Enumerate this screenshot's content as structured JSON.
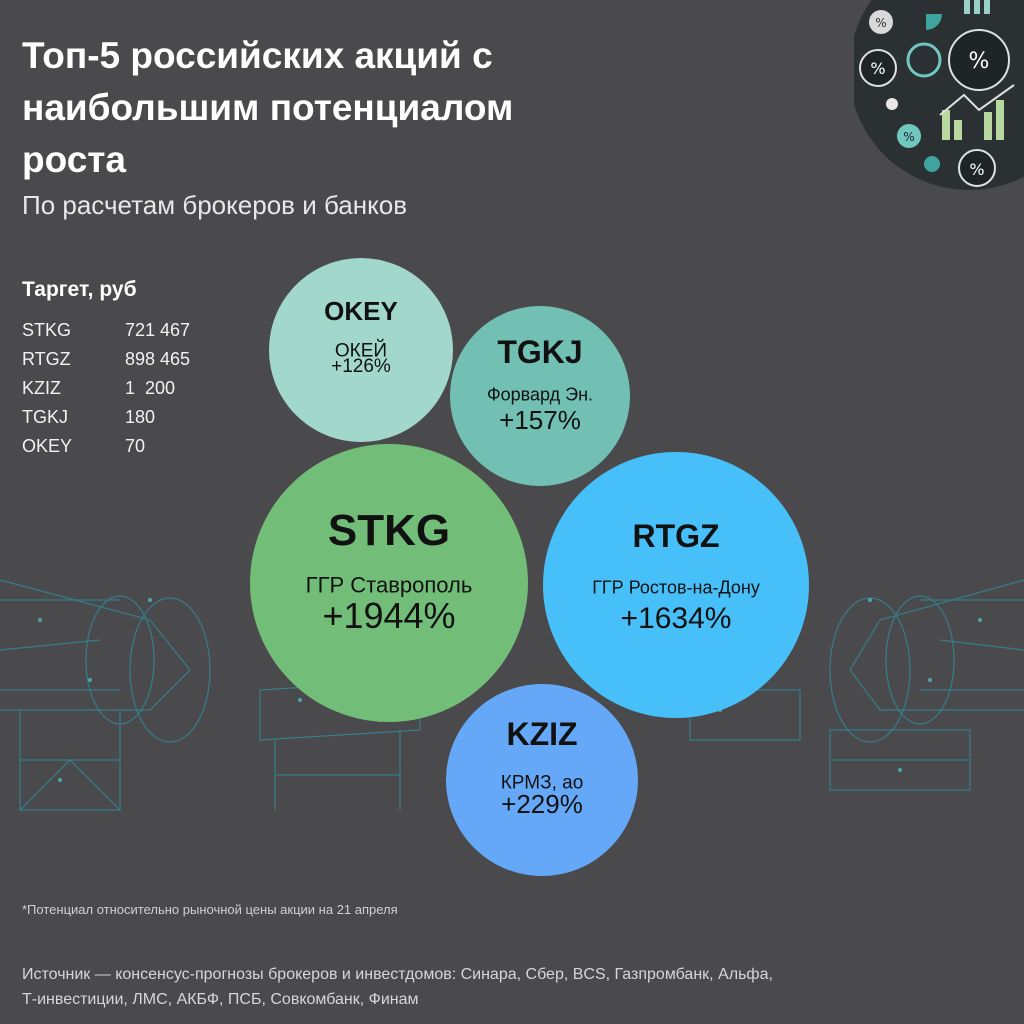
{
  "header": {
    "title": "Топ-5 российских акций с наибольшим потенциалом роста",
    "subtitle": "По расчетам брокеров и банков"
  },
  "targets": {
    "title": "Таргет, руб",
    "rows": [
      {
        "ticker": "STKG",
        "value": "721 467"
      },
      {
        "ticker": "RTGZ",
        "value": "898 465"
      },
      {
        "ticker": "KZIZ",
        "value": "1  200"
      },
      {
        "ticker": "TGKJ",
        "value": "180"
      },
      {
        "ticker": "OKEY",
        "value": "70"
      }
    ]
  },
  "chart_data": {
    "type": "bubble",
    "title": "Топ-5 российских акций с наибольшим потенциалом роста",
    "subtitle": "По расчетам брокеров и банков",
    "unit": "%",
    "series": [
      {
        "ticker": "STKG",
        "company": "ГГР Ставрополь",
        "label": "+1944%",
        "value": 1944,
        "color": "#72be78"
      },
      {
        "ticker": "RTGZ",
        "company": "ГГР Ростов-на-Дону",
        "label": "+1634%",
        "value": 1634,
        "color": "#47c0fa"
      },
      {
        "ticker": "KZIZ",
        "company": "КРМЗ, ао",
        "label": "+229%",
        "value": 229,
        "color": "#65a8f8"
      },
      {
        "ticker": "TGKJ",
        "company": "Форвард Эн.",
        "label": "+157%",
        "value": 157,
        "color": "#72c0b4"
      },
      {
        "ticker": "OKEY",
        "company": "ОКЕЙ",
        "label": "+126%",
        "value": 126,
        "color": "#a1d8cb"
      }
    ]
  },
  "footnote": "*Потенциал относительно рыночной цены акции на 21 апреля",
  "source_lines": [
    "Источник — консенсус-прогнозы брокеров и инвестдомов: Синара, Сбер, BCS, Газпромбанк, Альфа,",
    "Т-инвестиции, ЛМС, АКБФ, ПСБ, Совкомбанк, Финам"
  ]
}
